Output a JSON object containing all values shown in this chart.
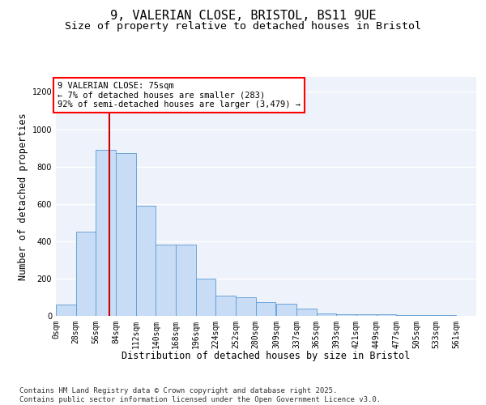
{
  "title_line1": "9, VALERIAN CLOSE, BRISTOL, BS11 9UE",
  "title_line2": "Size of property relative to detached houses in Bristol",
  "xlabel": "Distribution of detached houses by size in Bristol",
  "ylabel": "Number of detached properties",
  "bar_color": "#c9dcf5",
  "bar_edge_color": "#5b9bd5",
  "background_color": "#eef2fa",
  "grid_color": "#ffffff",
  "annotation_text": "9 VALERIAN CLOSE: 75sqm\n← 7% of detached houses are smaller (283)\n92% of semi-detached houses are larger (3,479) →",
  "vline_color": "#cc0000",
  "property_size_bin": 2,
  "categories": [
    "0sqm",
    "28sqm",
    "56sqm",
    "84sqm",
    "112sqm",
    "140sqm",
    "168sqm",
    "196sqm",
    "224sqm",
    "252sqm",
    "280sqm",
    "309sqm",
    "337sqm",
    "365sqm",
    "393sqm",
    "421sqm",
    "449sqm",
    "477sqm",
    "505sqm",
    "533sqm",
    "561sqm"
  ],
  "bin_lefts": [
    0,
    28,
    56,
    84,
    112,
    140,
    168,
    196,
    224,
    252,
    280,
    309,
    337,
    365,
    393,
    421,
    449,
    477,
    505,
    533,
    561
  ],
  "bin_width": 28,
  "values": [
    60,
    450,
    890,
    870,
    590,
    380,
    380,
    200,
    110,
    100,
    75,
    65,
    40,
    15,
    10,
    10,
    10,
    5,
    5,
    5,
    2
  ],
  "ylim": [
    0,
    1280
  ],
  "yticks": [
    0,
    200,
    400,
    600,
    800,
    1000,
    1200
  ],
  "footer": "Contains HM Land Registry data © Crown copyright and database right 2025.\nContains public sector information licensed under the Open Government Licence v3.0.",
  "title_fontsize": 11,
  "subtitle_fontsize": 9.5,
  "axis_label_fontsize": 8.5,
  "tick_fontsize": 7,
  "annotation_fontsize": 7.5,
  "footer_fontsize": 6.5
}
